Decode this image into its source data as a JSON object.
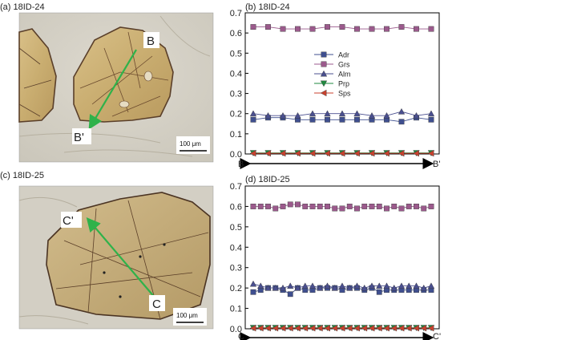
{
  "panels": {
    "a": {
      "label": "(a) 18ID-24"
    },
    "c": {
      "label": "(c) 18ID-25"
    }
  },
  "micrographs": [
    {
      "id": "a",
      "start_label": "B",
      "end_label": "B'",
      "scale_bar": "100 μm"
    },
    {
      "id": "c",
      "start_label": "C",
      "end_label": "C'",
      "scale_bar": "100 μm"
    }
  ],
  "chart_data": [
    {
      "type": "line",
      "title": "(b) 18ID-24",
      "xlabel_start": "B",
      "xlabel_end": "B'",
      "ylim": [
        0,
        0.7
      ],
      "yticks": [
        "0.0",
        "0.1",
        "0.2",
        "0.3",
        "0.4",
        "0.5",
        "0.6",
        "0.7"
      ],
      "points": 13,
      "legend_position": "center",
      "series": [
        {
          "name": "Adr",
          "color": "#3f4f8f",
          "marker": "square",
          "values": [
            0.17,
            0.18,
            0.18,
            0.17,
            0.17,
            0.17,
            0.17,
            0.17,
            0.17,
            0.17,
            0.16,
            0.18,
            0.17
          ]
        },
        {
          "name": "Grs",
          "color": "#9b5a8c",
          "marker": "square",
          "values": [
            0.63,
            0.63,
            0.62,
            0.62,
            0.62,
            0.63,
            0.63,
            0.62,
            0.62,
            0.62,
            0.63,
            0.62,
            0.62
          ]
        },
        {
          "name": "Alm",
          "color": "#4a4f8f",
          "marker": "triangle-up",
          "values": [
            0.2,
            0.19,
            0.19,
            0.19,
            0.2,
            0.2,
            0.2,
            0.2,
            0.19,
            0.19,
            0.21,
            0.19,
            0.2
          ]
        },
        {
          "name": "Prp",
          "color": "#1f8a3f",
          "marker": "triangle-down",
          "values": [
            0.005,
            0.005,
            0.005,
            0.005,
            0.005,
            0.005,
            0.005,
            0.005,
            0.005,
            0.005,
            0.005,
            0.005,
            0.005
          ]
        },
        {
          "name": "Sps",
          "color": "#c8422f",
          "marker": "triangle-left",
          "values": [
            0.003,
            0.003,
            0.003,
            0.003,
            0.003,
            0.003,
            0.003,
            0.003,
            0.003,
            0.003,
            0.003,
            0.003,
            0.003
          ]
        }
      ]
    },
    {
      "type": "line",
      "title": "(d) 18ID-25",
      "xlabel_start": "C",
      "xlabel_end": "C'",
      "ylim": [
        0,
        0.7
      ],
      "yticks": [
        "0.0",
        "0.1",
        "0.2",
        "0.3",
        "0.4",
        "0.5",
        "0.6",
        "0.7"
      ],
      "points": 25,
      "series": [
        {
          "name": "Adr",
          "color": "#3f4f8f",
          "marker": "square",
          "values": [
            0.18,
            0.19,
            0.2,
            0.2,
            0.19,
            0.17,
            0.2,
            0.19,
            0.19,
            0.2,
            0.2,
            0.2,
            0.19,
            0.2,
            0.2,
            0.19,
            0.2,
            0.18,
            0.19,
            0.19,
            0.19,
            0.19,
            0.19,
            0.19,
            0.19
          ]
        },
        {
          "name": "Grs",
          "color": "#9b5a8c",
          "marker": "square",
          "values": [
            0.6,
            0.6,
            0.6,
            0.59,
            0.6,
            0.61,
            0.61,
            0.6,
            0.6,
            0.6,
            0.6,
            0.59,
            0.59,
            0.6,
            0.59,
            0.6,
            0.6,
            0.6,
            0.59,
            0.6,
            0.59,
            0.6,
            0.6,
            0.59,
            0.6
          ]
        },
        {
          "name": "Alm",
          "color": "#4a4f8f",
          "marker": "triangle-up",
          "values": [
            0.22,
            0.21,
            0.2,
            0.2,
            0.2,
            0.21,
            0.2,
            0.21,
            0.21,
            0.2,
            0.21,
            0.2,
            0.21,
            0.2,
            0.21,
            0.2,
            0.21,
            0.21,
            0.21,
            0.2,
            0.21,
            0.21,
            0.21,
            0.2,
            0.21
          ]
        },
        {
          "name": "Prp",
          "color": "#1f8a3f",
          "marker": "triangle-down",
          "values": [
            0.005,
            0.005,
            0.005,
            0.005,
            0.005,
            0.005,
            0.005,
            0.005,
            0.005,
            0.005,
            0.005,
            0.005,
            0.005,
            0.005,
            0.005,
            0.005,
            0.005,
            0.005,
            0.005,
            0.005,
            0.005,
            0.005,
            0.005,
            0.005,
            0.005
          ]
        },
        {
          "name": "Sps",
          "color": "#c8422f",
          "marker": "triangle-left",
          "values": [
            0.003,
            0.003,
            0.003,
            0.003,
            0.003,
            0.003,
            0.003,
            0.003,
            0.003,
            0.003,
            0.003,
            0.003,
            0.003,
            0.003,
            0.003,
            0.003,
            0.003,
            0.003,
            0.003,
            0.003,
            0.003,
            0.003,
            0.003,
            0.003,
            0.003
          ]
        }
      ]
    }
  ]
}
